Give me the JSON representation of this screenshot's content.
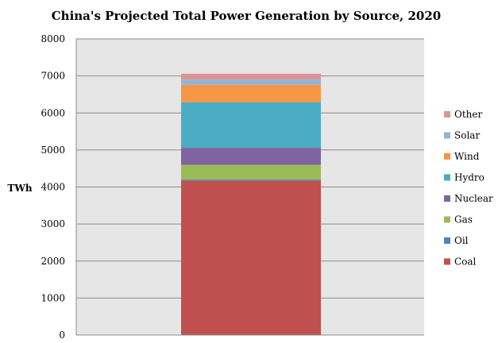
{
  "chart_data": {
    "type": "bar",
    "stacked": true,
    "title": "China's Projected Total Power Generation by Source, 2020",
    "xlabel": "",
    "ylabel": "TWh",
    "ylim": [
      0,
      8000
    ],
    "yticks": [
      0,
      1000,
      2000,
      3000,
      4000,
      5000,
      6000,
      7000,
      8000
    ],
    "categories": [
      ""
    ],
    "grid": true,
    "legend_position": "right",
    "series": [
      {
        "name": "Coal",
        "values": [
          4170
        ],
        "color": "#c0504d"
      },
      {
        "name": "Oil",
        "values": [
          30
        ],
        "color": "#4f81bd"
      },
      {
        "name": "Gas",
        "values": [
          400
        ],
        "color": "#9bbb59"
      },
      {
        "name": "Nuclear",
        "values": [
          460
        ],
        "color": "#8064a2"
      },
      {
        "name": "Hydro",
        "values": [
          1230
        ],
        "color": "#4bacc6"
      },
      {
        "name": "Wind",
        "values": [
          470
        ],
        "color": "#f79646"
      },
      {
        "name": "Solar",
        "values": [
          140
        ],
        "color": "#95b3d7"
      },
      {
        "name": "Other",
        "values": [
          160
        ],
        "color": "#d99694"
      }
    ],
    "plot_background": "#e6e6e6",
    "gridline_color": "#8c8c8c"
  }
}
